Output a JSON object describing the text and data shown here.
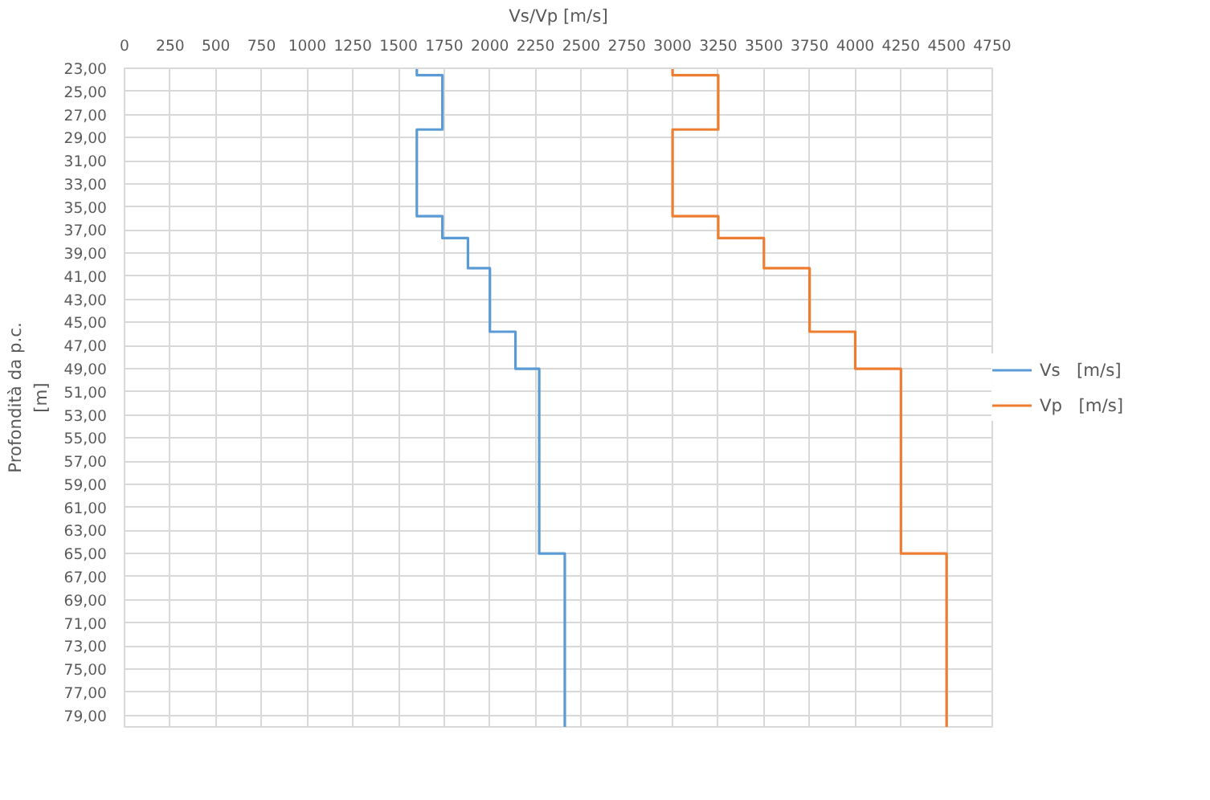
{
  "chart_data": {
    "type": "line",
    "xlabel": "Vs/Vp [m/s]",
    "ylabel": "Profondità da p.c.\n[m]",
    "xlim": [
      0,
      4750
    ],
    "xticks": [
      0,
      250,
      500,
      750,
      1000,
      1250,
      1500,
      1750,
      2000,
      2250,
      2500,
      2750,
      3000,
      3250,
      3500,
      3750,
      4000,
      4250,
      4500,
      4750
    ],
    "ylim": [
      80,
      23
    ],
    "yticks": [
      {
        "value": 23,
        "label": "23,00"
      },
      {
        "value": 25,
        "label": "25,00"
      },
      {
        "value": 27,
        "label": "27,00"
      },
      {
        "value": 29,
        "label": "29,00"
      },
      {
        "value": 31,
        "label": "31,00"
      },
      {
        "value": 33,
        "label": "33,00"
      },
      {
        "value": 35,
        "label": "35,00"
      },
      {
        "value": 37,
        "label": "37,00"
      },
      {
        "value": 39,
        "label": "39,00"
      },
      {
        "value": 41,
        "label": "41,00"
      },
      {
        "value": 43,
        "label": "43,00"
      },
      {
        "value": 45,
        "label": "45,00"
      },
      {
        "value": 47,
        "label": "47,00"
      },
      {
        "value": 49,
        "label": "49,00"
      },
      {
        "value": 51,
        "label": "51,00"
      },
      {
        "value": 53,
        "label": "53,00"
      },
      {
        "value": 55,
        "label": "55,00"
      },
      {
        "value": 57,
        "label": "57,00"
      },
      {
        "value": 59,
        "label": "59,00"
      },
      {
        "value": 61,
        "label": "61,00"
      },
      {
        "value": 63,
        "label": "63,00"
      },
      {
        "value": 65,
        "label": "65,00"
      },
      {
        "value": 67,
        "label": "67,00"
      },
      {
        "value": 69,
        "label": "69,00"
      },
      {
        "value": 71,
        "label": "71,00"
      },
      {
        "value": 73,
        "label": "73,00"
      },
      {
        "value": 75,
        "label": "75,00"
      },
      {
        "value": 77,
        "label": "77,00"
      },
      {
        "value": 79,
        "label": "79,00"
      }
    ],
    "grid": true,
    "legend": "right",
    "marker": "none",
    "line_style": "solid",
    "series": [
      {
        "name": "Vs   [m/s]",
        "color": "#5b9bd5",
        "x": [
          1600,
          1600,
          1740,
          1740,
          1600,
          1600,
          1740,
          1740,
          1880,
          1880,
          2000,
          2000,
          2140,
          2140,
          2270,
          2270,
          2410,
          2410
        ],
        "values": [
          23,
          23.6,
          23.6,
          28.3,
          28.3,
          35.8,
          35.8,
          37.7,
          37.7,
          40.3,
          40.3,
          45.8,
          45.8,
          49,
          49,
          65,
          65,
          80
        ]
      },
      {
        "name": "Vp   [m/s]",
        "color": "#ed7d31",
        "x": [
          3000,
          3000,
          3250,
          3250,
          3000,
          3000,
          3250,
          3250,
          3500,
          3500,
          3750,
          3750,
          4000,
          4000,
          4250,
          4250,
          4500,
          4500
        ],
        "values": [
          23,
          23.6,
          23.6,
          28.3,
          28.3,
          35.8,
          35.8,
          37.7,
          37.7,
          40.3,
          40.3,
          45.8,
          45.8,
          49,
          49,
          65,
          65,
          80
        ]
      }
    ]
  }
}
